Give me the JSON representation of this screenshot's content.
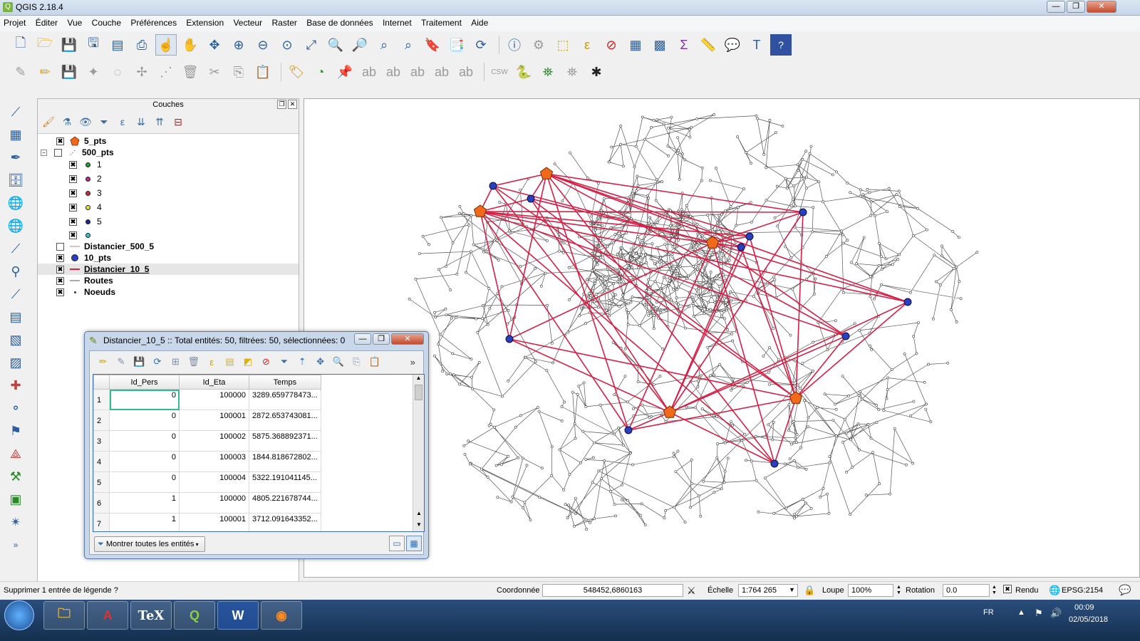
{
  "window": {
    "title": "QGIS 2.18.4",
    "controls": {
      "minimize": "—",
      "maximize": "❐",
      "close": "✕"
    }
  },
  "menubar": [
    "Projet",
    "Éditer",
    "Vue",
    "Couche",
    "Préférences",
    "Extension",
    "Vecteur",
    "Raster",
    "Base de données",
    "Internet",
    "Traitement",
    "Aide"
  ],
  "layers_panel": {
    "title": "Couches",
    "layers": [
      {
        "name": "5_pts",
        "checked": true,
        "bold": true,
        "symbol": "orange-pentagon"
      },
      {
        "name": "500_pts",
        "checked": false,
        "bold": true,
        "symbol": "dot-group"
      },
      {
        "name": "1",
        "checked": true,
        "bold": false,
        "symbol": "green-dot",
        "color": "#2e9b2e"
      },
      {
        "name": "2",
        "checked": true,
        "bold": false,
        "symbol": "magenta-dot",
        "color": "#c2248e"
      },
      {
        "name": "3",
        "checked": true,
        "bold": false,
        "symbol": "red-dot",
        "color": "#d42a2a"
      },
      {
        "name": "4",
        "checked": true,
        "bold": false,
        "symbol": "yellow-dot",
        "color": "#f0e030"
      },
      {
        "name": "5",
        "checked": true,
        "bold": false,
        "symbol": "navy-dot",
        "color": "#1a2a80"
      },
      {
        "name": "",
        "checked": true,
        "bold": false,
        "symbol": "cyan-dot",
        "color": "#40c0d0"
      },
      {
        "name": "Distancier_500_5",
        "checked": false,
        "bold": true,
        "symbol": "thin-line"
      },
      {
        "name": "10_pts",
        "checked": true,
        "bold": true,
        "symbol": "blue-dot"
      },
      {
        "name": "Distancier_10_5",
        "checked": true,
        "bold": true,
        "symbol": "red-line",
        "selected": true
      },
      {
        "name": "Routes",
        "checked": true,
        "bold": true,
        "symbol": "grey-line"
      },
      {
        "name": "Noeuds",
        "checked": true,
        "bold": true,
        "symbol": "small-dot"
      }
    ]
  },
  "attribute_table": {
    "title": "Distancier_10_5 :: Total entités: 50, filtrées: 50, sélectionnées: 0",
    "columns": [
      "Id_Pers",
      "Id_Eta",
      "Temps"
    ],
    "rows": [
      {
        "n": "1",
        "id_pers": "0",
        "id_eta": "100000",
        "temps": "3289.659778473..."
      },
      {
        "n": "2",
        "id_pers": "0",
        "id_eta": "100001",
        "temps": "2872.653743081..."
      },
      {
        "n": "3",
        "id_pers": "0",
        "id_eta": "100002",
        "temps": "5875.368892371..."
      },
      {
        "n": "4",
        "id_pers": "0",
        "id_eta": "100003",
        "temps": "1844.818672802..."
      },
      {
        "n": "5",
        "id_pers": "0",
        "id_eta": "100004",
        "temps": "5322.191041145..."
      },
      {
        "n": "6",
        "id_pers": "1",
        "id_eta": "100000",
        "temps": "4805.221678744..."
      },
      {
        "n": "7",
        "id_pers": "1",
        "id_eta": "100001",
        "temps": "3712.091643352..."
      }
    ],
    "show_all_button": "Montrer toutes les entités",
    "overflow_button": "»"
  },
  "statusbar": {
    "message": "Supprimer 1 entrée de légende ?",
    "coord_label": "Coordonnée",
    "coord_value": "548452,6860163",
    "scale_label": "Échelle",
    "scale_value": "1:764 265",
    "magnifier_label": "Loupe",
    "magnifier_value": "100%",
    "rotation_label": "Rotation",
    "rotation_value": "0.0",
    "render_label": "Rendu",
    "crs_label": "EPSG:2154"
  },
  "taskbar": {
    "language": "FR",
    "time": "00:09",
    "date": "02/05/2018",
    "apps": [
      "explorer",
      "acrobat",
      "TeX",
      "qgis",
      "W",
      "firefox"
    ]
  },
  "colors": {
    "route_network": "#555555",
    "distance_lines": "#d61f45",
    "big_points": "#f06a1a",
    "small_points": "#2a3fbf"
  }
}
